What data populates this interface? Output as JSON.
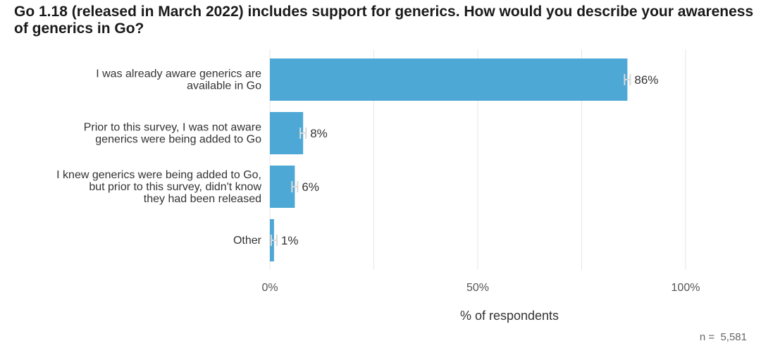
{
  "chart_data": {
    "type": "bar",
    "orientation": "horizontal",
    "title": "Go 1.18 (released in March 2022) includes support for generics. How would you describe your awareness of generics in Go?",
    "categories": [
      [
        "I was already aware generics are",
        "available in Go"
      ],
      [
        "Prior to this survey, I was not aware",
        "generics were being added to Go"
      ],
      [
        "I knew generics were being added to Go,",
        "but prior to this survey, didn't know",
        "they had been released"
      ],
      [
        "Other"
      ]
    ],
    "values": [
      86,
      8,
      6,
      1
    ],
    "data_labels": [
      "86%",
      "8%",
      "6%",
      "1%"
    ],
    "error_bars": true,
    "xlim": [
      0,
      100
    ],
    "xticks": [
      0,
      50,
      100
    ],
    "xtick_labels": [
      "0%",
      "50%",
      "100%"
    ],
    "gridlines": [
      0,
      25,
      50,
      75,
      100
    ],
    "xlabel": "% of respondents",
    "ylabel": "",
    "bar_color": "#4ea8d6",
    "grid_color": "#e6e6e6",
    "error_bar_color": "#d9d9d9",
    "note": "n =  5,581"
  }
}
